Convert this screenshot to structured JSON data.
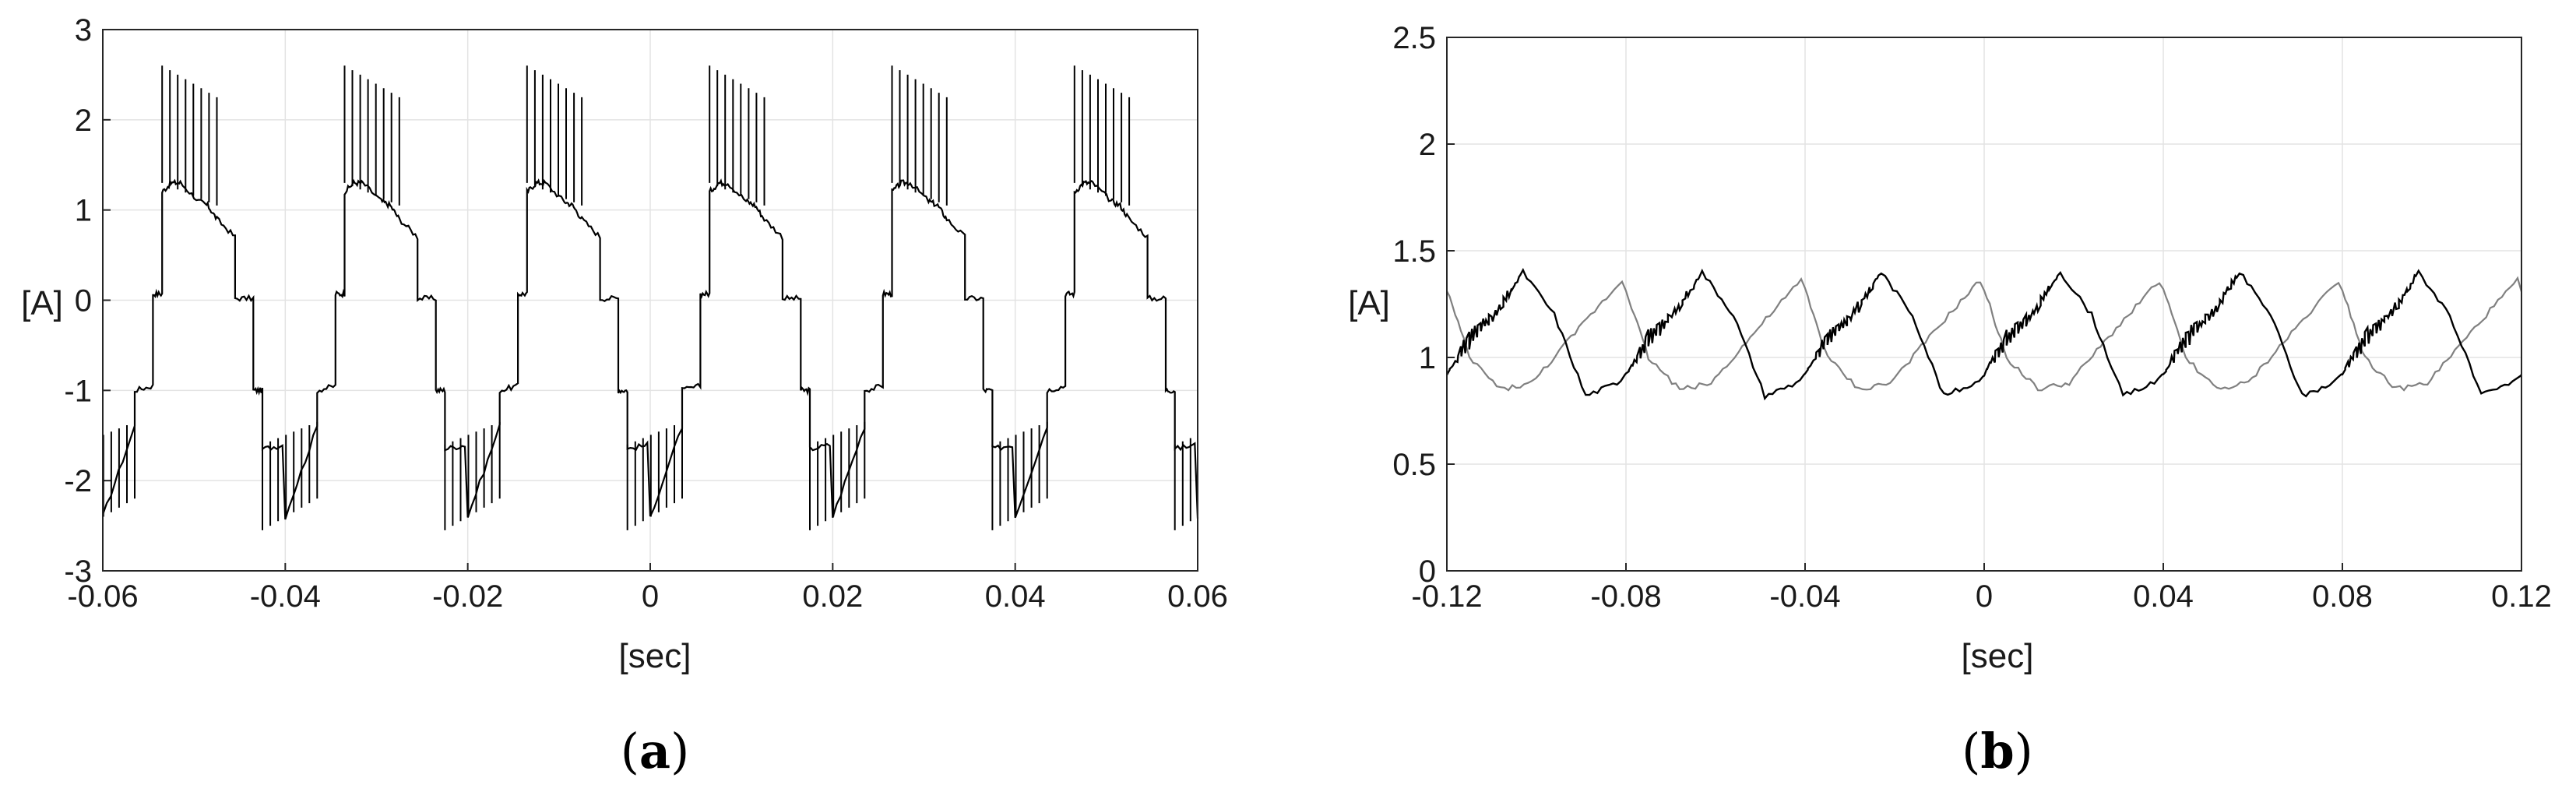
{
  "chart_data": [
    {
      "type": "line",
      "caption": {
        "open": "(",
        "letter": "a",
        "close": ")"
      },
      "xlabel": "[sec]",
      "ylabel": "[A]",
      "xlim": [
        -0.06,
        0.06
      ],
      "ylim": [
        -3,
        3
      ],
      "xticks": [
        -0.06,
        -0.04,
        -0.02,
        0,
        0.02,
        0.04,
        0.06
      ],
      "xtick_labels": [
        "-0.06",
        "-0.04",
        "-0.02",
        "0",
        "0.02",
        "0.04",
        "0.06"
      ],
      "yticks": [
        -3,
        -2,
        -1,
        0,
        1,
        2,
        3
      ],
      "ytick_labels": [
        "-3",
        "-2",
        "-1",
        "0",
        "1",
        "2",
        "3"
      ],
      "grid": true,
      "period": 0.02,
      "series": [
        {
          "color": "#000000",
          "x": [
            -0.06,
            -0.0565,
            -0.0565,
            -0.0545,
            -0.0545,
            -0.0535,
            -0.0535,
            -0.0525,
            -0.0515,
            -0.0495,
            -0.0485,
            -0.0475,
            -0.0455,
            -0.0455,
            -0.0435,
            -0.0435,
            -0.0425,
            -0.0425,
            -0.04
          ],
          "values": [
            -2.4,
            -1.4,
            -1.0,
            -0.95,
            0.07,
            0.07,
            1.2,
            1.3,
            1.3,
            1.1,
            1.05,
            0.9,
            0.7,
            0.02,
            0.02,
            -1.0,
            -1.0,
            -1.65,
            -1.6
          ],
          "spikes_high": [
            2.6,
            2.55,
            2.5,
            2.45,
            2.4,
            2.35,
            2.3,
            2.25
          ],
          "spikes_low": [
            -2.55,
            -2.5,
            -2.45,
            -2.4,
            -2.35,
            -2.3,
            -2.25,
            -2.2
          ]
        }
      ]
    },
    {
      "type": "line",
      "caption": {
        "open": "(",
        "letter": "b",
        "close": ")"
      },
      "xlabel": "[sec]",
      "ylabel": "[A]",
      "xlim": [
        -0.12,
        0.12
      ],
      "ylim": [
        0,
        2.5
      ],
      "xticks": [
        -0.12,
        -0.08,
        -0.04,
        0,
        0.04,
        0.08,
        0.12
      ],
      "xtick_labels": [
        "-0.12",
        "-0.08",
        "-0.04",
        "0",
        "0.04",
        "0.08",
        "0.12"
      ],
      "yticks": [
        0,
        0.5,
        1,
        1.5,
        2,
        2.5
      ],
      "ytick_labels": [
        "0",
        "0.5",
        "1",
        "1.5",
        "2",
        "2.5"
      ],
      "grid": true,
      "period": 0.04,
      "series": [
        {
          "color": "#000000",
          "x": [
            -0.12,
            -0.115,
            -0.11,
            -0.103,
            -0.096,
            -0.089,
            -0.082,
            -0.075,
            -0.068,
            -0.063
          ],
          "values": [
            0.92,
            1.12,
            1.2,
            1.4,
            1.2,
            0.82,
            0.88,
            1.05,
            1.22,
            1.4
          ]
        },
        {
          "color": "#808080",
          "x": [
            -0.12,
            -0.115,
            -0.108,
            -0.101,
            -0.094,
            -0.087,
            -0.08
          ],
          "values": [
            1.32,
            1.0,
            0.85,
            0.88,
            1.05,
            1.22,
            1.38
          ]
        }
      ]
    }
  ]
}
